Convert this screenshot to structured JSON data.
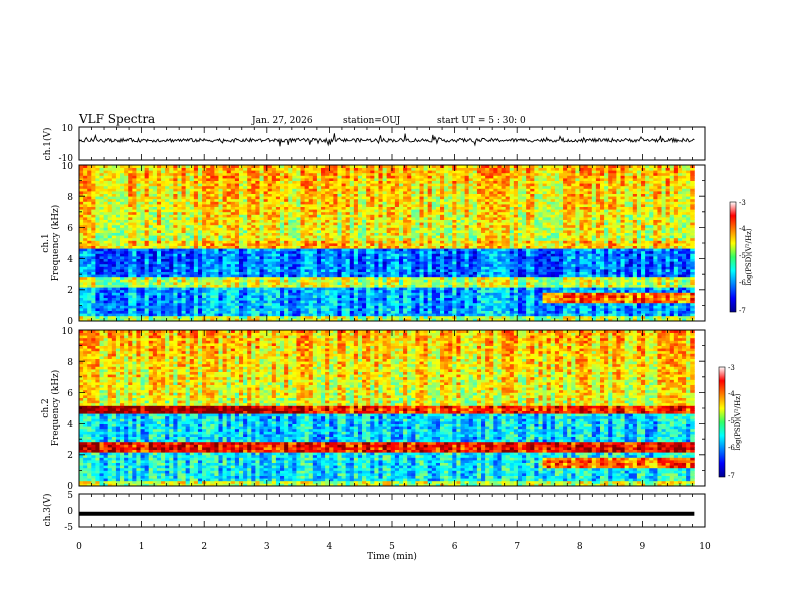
{
  "header": {
    "title": "VLF Spectra",
    "date": "Jan. 27, 2026",
    "station": "station=OUJ",
    "start": "start  UT =   5 : 30: 0"
  },
  "chart_data": [
    {
      "type": "line",
      "name": "ch.1 waveform",
      "ylabel": "ch.1(V)",
      "ylim": [
        -10,
        10
      ],
      "yticks": [
        "10",
        "-10"
      ],
      "x_range_min": [
        0,
        9.83
      ],
      "trace": "noisy waveform centered near 2 V with spikes"
    },
    {
      "type": "heatmap",
      "name": "ch.1 spectrogram",
      "ylabel_lines": [
        "ch.1",
        "Frequency (kHz)"
      ],
      "ylim_khz": [
        0,
        10
      ],
      "yticks": [
        "0",
        "2",
        "4",
        "6",
        "8",
        "10"
      ],
      "x_range_min": [
        0,
        9.83
      ],
      "colorbar": {
        "label": "log(PSD)(V²/Hz)",
        "range": [
          -7,
          -3
        ],
        "ticks": [
          "-3",
          "-4",
          "-5",
          "-6",
          "-7"
        ]
      }
    },
    {
      "type": "heatmap",
      "name": "ch.2 spectrogram",
      "ylabel_lines": [
        "ch.2",
        "Frequency (kHz)"
      ],
      "ylim_khz": [
        0,
        10
      ],
      "yticks": [
        "0",
        "2",
        "4",
        "6",
        "8",
        "10"
      ],
      "x_range_min": [
        0,
        9.83
      ],
      "colorbar": {
        "label": "log(PSD)(V²/Hz)",
        "range": [
          -7,
          -3
        ],
        "ticks": [
          "-3",
          "-4",
          "-5",
          "-6",
          "-7"
        ]
      }
    },
    {
      "type": "line",
      "name": "ch.3 waveform",
      "ylabel": "ch.3(V)",
      "ylim": [
        -5,
        5
      ],
      "yticks": [
        "5",
        "0",
        "-5"
      ],
      "x_range_min": [
        0,
        9.83
      ],
      "trace": "flat line at about -1 V"
    }
  ],
  "xaxis": {
    "label": "Time (min)",
    "ticks": [
      "0",
      "1",
      "2",
      "3",
      "4",
      "5",
      "6",
      "7",
      "8",
      "9",
      "10"
    ],
    "range": [
      0,
      10
    ]
  }
}
